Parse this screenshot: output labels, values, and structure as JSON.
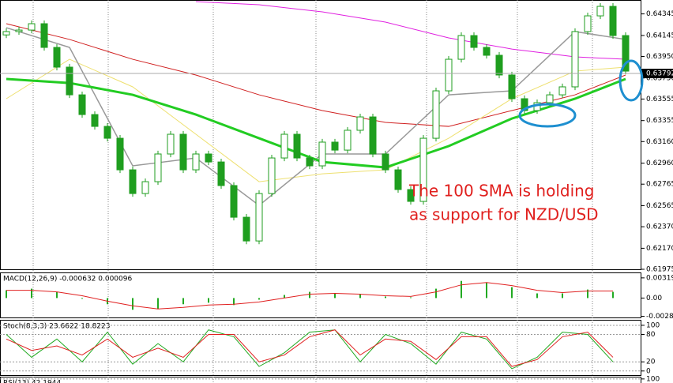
{
  "chart_data": [
    {
      "type": "candlestick",
      "open": [
        0.6415,
        0.64181,
        0.64195,
        0.64254,
        0.64034,
        0.63851,
        0.63594,
        0.63411,
        0.63301,
        0.63191,
        0.62898,
        0.62678,
        0.62788,
        0.63045,
        0.63228,
        0.62898,
        0.63045,
        0.62971,
        0.62752,
        0.62458,
        0.62238,
        0.62678,
        0.63008,
        0.63228,
        0.63008,
        0.62935,
        0.63155,
        0.63081,
        0.63265,
        0.63389,
        0.63045,
        0.62898,
        0.62715,
        0.62605,
        0.63191,
        0.63631,
        0.63924,
        0.64144,
        0.64034,
        0.63961,
        0.63778,
        0.63558,
        0.63448,
        0.63521,
        0.63594,
        0.63668,
        0.64181,
        0.64327,
        0.64415,
        0.64144
      ],
      "high": [
        0.64211,
        0.64225,
        0.64284,
        0.64284,
        0.64064,
        0.63881,
        0.63624,
        0.63441,
        0.63331,
        0.63221,
        0.62928,
        0.62818,
        0.63075,
        0.63258,
        0.63258,
        0.63075,
        0.63075,
        0.63001,
        0.62782,
        0.62488,
        0.62708,
        0.63038,
        0.63258,
        0.63258,
        0.63038,
        0.63185,
        0.63185,
        0.63295,
        0.63419,
        0.63419,
        0.63075,
        0.62928,
        0.62745,
        0.63221,
        0.63661,
        0.63954,
        0.64174,
        0.64174,
        0.64064,
        0.63991,
        0.63808,
        0.63588,
        0.63551,
        0.63624,
        0.63698,
        0.64211,
        0.64357,
        0.64445,
        0.64445,
        0.64174
      ],
      "low": [
        0.6412,
        0.64151,
        0.64165,
        0.64004,
        0.63821,
        0.63564,
        0.63381,
        0.63271,
        0.63161,
        0.62868,
        0.62648,
        0.62648,
        0.62758,
        0.63015,
        0.62868,
        0.62868,
        0.62941,
        0.62722,
        0.62428,
        0.62208,
        0.62208,
        0.62648,
        0.62978,
        0.62978,
        0.62905,
        0.62905,
        0.63051,
        0.63051,
        0.63235,
        0.63015,
        0.62868,
        0.62685,
        0.62575,
        0.62575,
        0.63161,
        0.63601,
        0.63894,
        0.64004,
        0.63931,
        0.63748,
        0.63528,
        0.63418,
        0.63418,
        0.63491,
        0.63564,
        0.63638,
        0.64151,
        0.64297,
        0.64114,
        0.63784
      ],
      "close": [
        0.64181,
        0.64195,
        0.64254,
        0.64034,
        0.63851,
        0.63594,
        0.63411,
        0.63301,
        0.63191,
        0.62898,
        0.62678,
        0.62788,
        0.63045,
        0.63228,
        0.62898,
        0.63045,
        0.62971,
        0.62752,
        0.62458,
        0.62238,
        0.62678,
        0.63008,
        0.63228,
        0.63008,
        0.62935,
        0.63155,
        0.63081,
        0.63265,
        0.63389,
        0.63045,
        0.62898,
        0.62715,
        0.62605,
        0.63191,
        0.63631,
        0.63924,
        0.64144,
        0.64034,
        0.63961,
        0.63778,
        0.63558,
        0.63448,
        0.63521,
        0.63594,
        0.63668,
        0.64181,
        0.64327,
        0.64415,
        0.64144,
        0.63814
      ],
      "color": "#1f9e1f",
      "ylim": [
        0.61975,
        0.64474
      ],
      "yticks": [
        0.64345,
        0.64145,
        {
          "value": 0.6395,
          "label": "0.63950"
        },
        {
          "value": 0.6375,
          "label": "0.63750"
        },
        0.63555,
        0.63355,
        {
          "value": 0.6316,
          "label": "0.63160"
        },
        {
          "value": 0.6296,
          "label": "0.62960"
        },
        0.62765,
        0.62565,
        {
          "value": 0.6237,
          "label": "0.62370"
        },
        {
          "value": 0.6217,
          "label": "0.62170"
        },
        0.61975
      ],
      "current_price": 0.63792,
      "moving_averages": {
        "x": [
          0,
          5,
          10,
          15,
          20,
          25,
          30,
          35,
          40,
          45,
          49
        ],
        "series": [
          {
            "color": "#e020e0",
            "width": 1,
            "values": [
              null,
              null,
              null,
              0.64459,
              0.6443,
              0.64364,
              0.64269,
              0.64122,
              0.64019,
              0.63946,
              0.63924
            ]
          },
          {
            "color": "#d02020",
            "width": 1,
            "values": [
              0.64254,
              0.64108,
              0.63924,
              0.63778,
              0.63594,
              0.63448,
              0.63338,
              0.63301,
              0.63448,
              0.63594,
              0.63778
            ]
          },
          {
            "color": "#eee070",
            "width": 1,
            "values": [
              0.63558,
              0.63924,
              0.63668,
              0.63228,
              0.62788,
              0.62861,
              0.62898,
              0.63191,
              0.63558,
              0.63814,
              0.63851
            ]
          },
          {
            "color": "#999999",
            "width": 1.5,
            "values": [
              0.64217,
              0.64034,
              0.62935,
              0.63008,
              0.62568,
              0.63045,
              0.63045,
              0.63594,
              0.63631,
              0.64181,
              0.64108
            ]
          },
          {
            "color": "#22cc22",
            "width": 3,
            "values": [
              0.63741,
              0.63704,
              0.63594,
              0.63411,
              0.63191,
              0.62971,
              0.6292,
              0.63118,
              0.63374,
              0.63558,
              0.63741
            ]
          }
        ]
      },
      "annotation": [
        "The 100 SMA is holding",
        "as support for NZD/USD"
      ]
    },
    {
      "type": "macd",
      "title": "MACD(12,26,9) -0.000632 0.000096",
      "ylim": [
        -0.00307,
        0.00405
      ],
      "yticks": [
        0.003191,
        {
          "value": 0,
          "label": "0.00"
        },
        -0.002884
      ],
      "x": [
        0,
        2,
        4,
        6,
        8,
        10,
        12,
        14,
        16,
        18,
        20,
        22,
        24,
        26,
        28,
        30,
        32,
        34,
        36,
        38,
        40,
        42,
        44,
        46,
        48
      ],
      "histogram": [
        0.00123,
        0.00148,
        0.00098,
        -0.00012,
        -0.00098,
        -0.00185,
        -0.00172,
        -0.00098,
        -0.00074,
        -0.00111,
        -0.00025,
        0.00049,
        0.00098,
        0.00074,
        0.00062,
        0.00025,
        0.00012,
        0.00148,
        0.00271,
        0.00246,
        0.00172,
        0.00074,
        0.00074,
        0.00135,
        0.00098
      ],
      "signal": [
        0.00123,
        0.00123,
        0.00098,
        0.00037,
        -0.00049,
        -0.00123,
        -0.00172,
        -0.00148,
        -0.00111,
        -0.00098,
        -0.00062,
        0,
        0.00062,
        0.00074,
        0.00062,
        0.00037,
        0.00025,
        0.00098,
        0.00209,
        0.00246,
        0.00197,
        0.00123,
        0.00086,
        0.00111,
        0.00111
      ],
      "histogram_color": "#22aa22",
      "signal_color": "#e02020"
    },
    {
      "type": "line",
      "title": "Stoch(8,3,3) 23.6622 18.8223",
      "ylim": [
        -9,
        112
      ],
      "yticks": [
        100,
        80,
        20,
        0
      ],
      "x": [
        0,
        2,
        4,
        6,
        8,
        10,
        12,
        14,
        16,
        18,
        20,
        22,
        24,
        26,
        28,
        30,
        32,
        34,
        36,
        38,
        40,
        42,
        44,
        46,
        48
      ],
      "series": [
        {
          "color": "#22aa22",
          "values": [
            80,
            30,
            70,
            20,
            85,
            15,
            60,
            20,
            90,
            75,
            10,
            40,
            85,
            90,
            20,
            80,
            60,
            15,
            85,
            70,
            5,
            30,
            85,
            80,
            20
          ]
        },
        {
          "color": "#e02020",
          "values": [
            70,
            45,
            55,
            35,
            70,
            30,
            50,
            30,
            80,
            80,
            20,
            35,
            75,
            90,
            35,
            70,
            65,
            25,
            75,
            75,
            10,
            25,
            75,
            85,
            30
          ]
        }
      ]
    },
    {
      "type": "line",
      "title": "RSI(13) 42.1944",
      "ylim": [
        91,
        105
      ],
      "yticks": [
        100
      ],
      "x": [],
      "series": []
    }
  ]
}
